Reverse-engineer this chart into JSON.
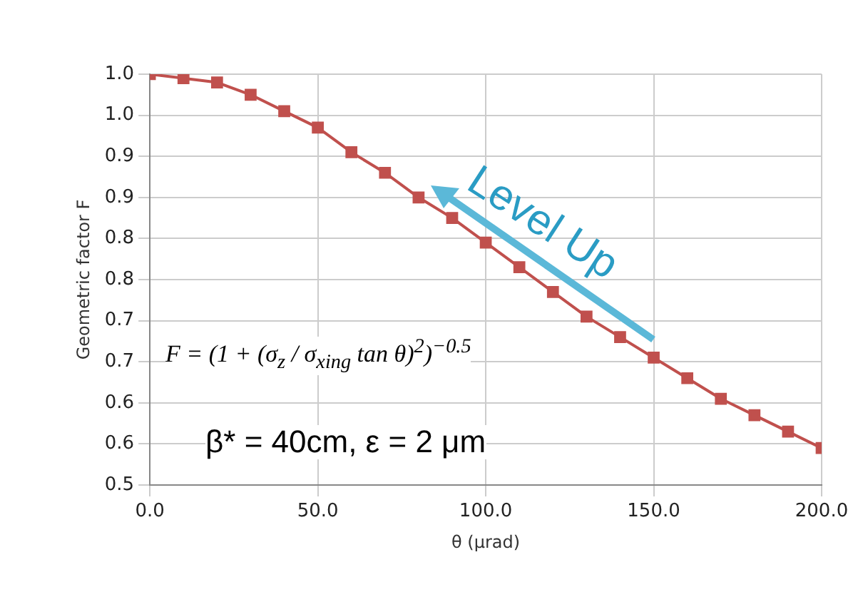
{
  "chart_data": {
    "type": "line",
    "x": [
      0,
      10,
      20,
      30,
      40,
      50,
      60,
      70,
      80,
      90,
      100,
      110,
      120,
      130,
      140,
      150,
      160,
      170,
      180,
      190,
      200
    ],
    "series": [
      {
        "color": "#c0504d",
        "values": [
          1.0,
          0.995,
          0.99,
          0.975,
          0.955,
          0.935,
          0.905,
          0.88,
          0.85,
          0.825,
          0.795,
          0.765,
          0.735,
          0.705,
          0.68,
          0.655,
          0.63,
          0.605,
          0.585,
          0.565,
          0.545
        ]
      }
    ],
    "xlabel": "θ (μrad)",
    "ylabel": "Geometric factor F",
    "xlim": [
      0,
      200
    ],
    "xticks": [
      {
        "value": 0,
        "label": "0.0"
      },
      {
        "value": 50,
        "label": "50.0"
      },
      {
        "value": 100,
        "label": "100.0"
      },
      {
        "value": 150,
        "label": "150.0"
      },
      {
        "value": 200,
        "label": "200.0"
      }
    ],
    "ylim": [
      0.5,
      1.0
    ],
    "yticks": [
      {
        "value": 0.5,
        "label": "0.5"
      },
      {
        "value": 0.55,
        "label": "0.6"
      },
      {
        "value": 0.6,
        "label": "0.6"
      },
      {
        "value": 0.65,
        "label": "0.7"
      },
      {
        "value": 0.7,
        "label": "0.7"
      },
      {
        "value": 0.75,
        "label": "0.8"
      },
      {
        "value": 0.8,
        "label": "0.8"
      },
      {
        "value": 0.85,
        "label": "0.9"
      },
      {
        "value": 0.9,
        "label": "0.9"
      },
      {
        "value": 0.95,
        "label": "1.0"
      },
      {
        "value": 1.0,
        "label": "1.0"
      }
    ],
    "annotations": [
      "F = (1 + (σ$_{z}$ / σ$_{xing}$ tan θ)$^{2}$)$^{−0.5}$",
      "β* = 40cm, ε = 2 μm",
      "Level Up"
    ],
    "grid": true,
    "legend": false,
    "marker": "square",
    "line_style": "solid"
  }
}
